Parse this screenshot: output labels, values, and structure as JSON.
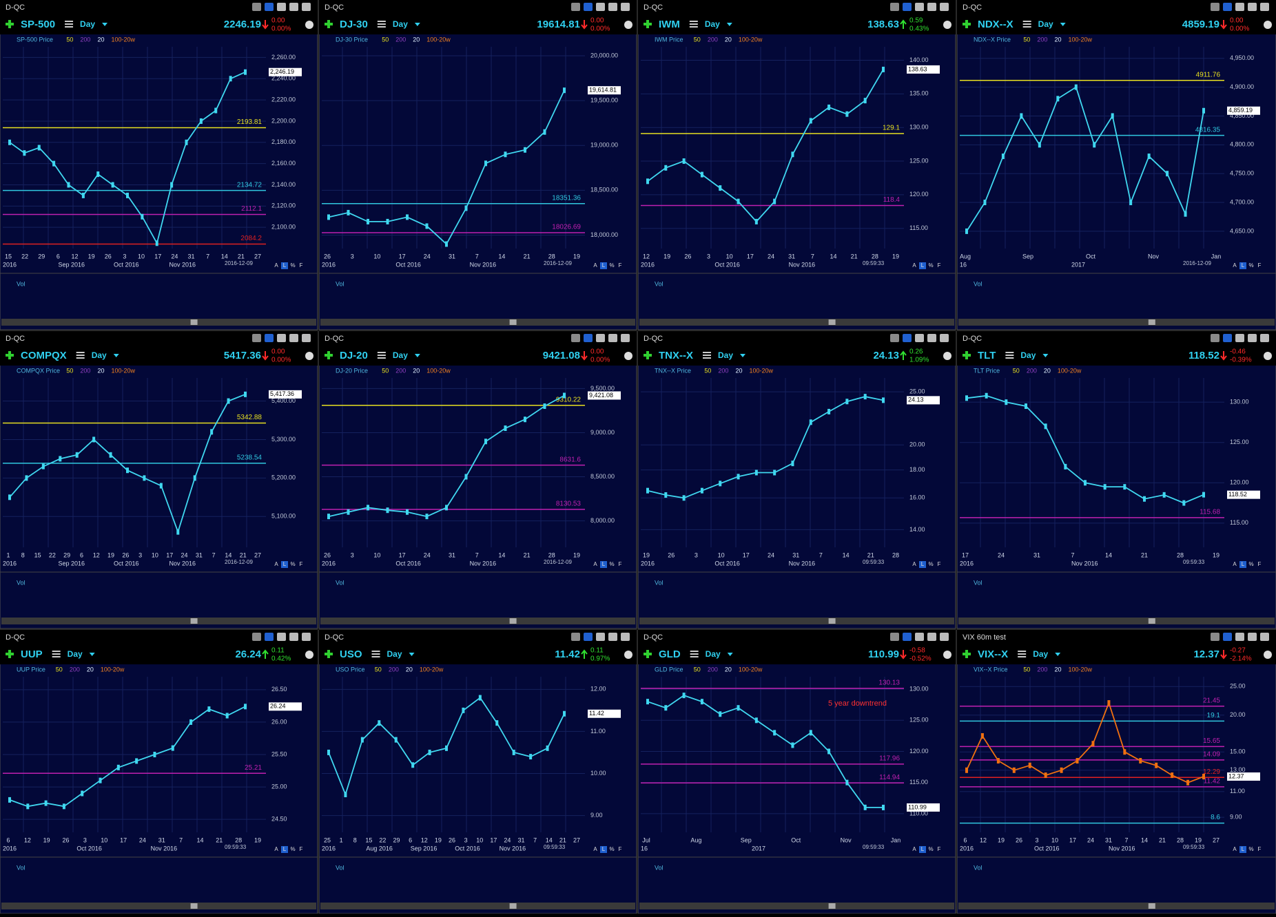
{
  "controls": [
    "A",
    "L",
    "%",
    "F"
  ],
  "volume_label": "Vol",
  "legend_items": [
    "50",
    "200",
    "20",
    "100-20w"
  ],
  "panels": [
    {
      "top": "D-QC",
      "symbol": "SP-500",
      "period": "Day",
      "price": "2246.19",
      "change": "0.00",
      "pct": "0.00%",
      "direction": "down",
      "legend": "SP-500 Price",
      "last_label": "2,246.19",
      "ylim": [
        2080,
        2270
      ],
      "yticks": [
        {
          "value": 2260,
          "label": "2,260.00"
        },
        {
          "value": 2240,
          "label": "2,240.00"
        },
        {
          "value": 2220,
          "label": "2,220.00"
        },
        {
          "value": 2200,
          "label": "2,200.00"
        },
        {
          "value": 2180,
          "label": "2,180.00"
        },
        {
          "value": 2160,
          "label": "2,160.00"
        },
        {
          "value": 2140,
          "label": "2,140.00"
        },
        {
          "value": 2120,
          "label": "2,120.00"
        },
        {
          "value": 2100,
          "label": "2,100.00"
        }
      ],
      "levels": [
        {
          "value": 2193.81,
          "color": "#e8e020"
        },
        {
          "value": 2134.72,
          "color": "#30c8e0"
        },
        {
          "value": 2112.1,
          "color": "#c020b0"
        },
        {
          "value": 2084.2,
          "color": "#e02020"
        }
      ],
      "closes": [
        2180,
        2170,
        2175,
        2160,
        2140,
        2130,
        2150,
        2140,
        2130,
        2110,
        2085,
        2140,
        2180,
        2200,
        2210,
        2240,
        2246.19
      ],
      "x_labels": [
        "15",
        "22",
        "29",
        "6",
        "12",
        "19",
        "26",
        "3",
        "10",
        "17",
        "24",
        "31",
        "7",
        "14",
        "21",
        "27"
      ],
      "x_labels2": [
        "2016",
        "Sep 2016",
        "Oct 2016",
        "Nov 2016"
      ],
      "stamp": "2016-12-09"
    },
    {
      "top": "D-QC",
      "symbol": "DJ-30",
      "period": "Day",
      "price": "19614.81",
      "change": "0.00",
      "pct": "0.00%",
      "direction": "down",
      "legend": "DJ-30 Price",
      "last_label": "19,614.81",
      "ylim": [
        17850,
        20100
      ],
      "yticks": [
        {
          "value": 20000,
          "label": "20,000.00"
        },
        {
          "value": 19500,
          "label": "19,500.00"
        },
        {
          "value": 19000,
          "label": "19,000.00"
        },
        {
          "value": 18500,
          "label": "18,500.00"
        },
        {
          "value": 18000,
          "label": "18,000.00"
        }
      ],
      "levels": [
        {
          "value": 18351.36,
          "color": "#30c8e0"
        },
        {
          "value": 18026.69,
          "color": "#c020b0"
        }
      ],
      "closes": [
        18200,
        18250,
        18150,
        18150,
        18200,
        18100,
        17900,
        18300,
        18800,
        18900,
        18950,
        19150,
        19614.81
      ],
      "x_labels": [
        "26",
        "3",
        "10",
        "17",
        "24",
        "31",
        "7",
        "14",
        "21",
        "28",
        "19"
      ],
      "x_labels2": [
        "2016",
        "Oct 2016",
        "Nov 2016"
      ],
      "stamp": "2016-12-09"
    },
    {
      "top": "D-QC",
      "symbol": "IWM",
      "period": "Day",
      "price": "138.63",
      "change": "0.59",
      "pct": "0.43%",
      "direction": "up",
      "legend": "IWM Price",
      "last_label": "138.63",
      "ylim": [
        112,
        142
      ],
      "yticks": [
        {
          "value": 140,
          "label": "140.00"
        },
        {
          "value": 135,
          "label": "135.00"
        },
        {
          "value": 130,
          "label": "130.00"
        },
        {
          "value": 125,
          "label": "125.00"
        },
        {
          "value": 120,
          "label": "120.00"
        },
        {
          "value": 115,
          "label": "115.00"
        }
      ],
      "levels": [
        {
          "value": 129.1,
          "color": "#e8e020"
        },
        {
          "value": 118.4,
          "color": "#c020b0"
        }
      ],
      "closes": [
        122,
        124,
        125,
        123,
        121,
        119,
        116,
        119,
        126,
        131,
        133,
        132,
        134,
        138.63
      ],
      "x_labels": [
        "12",
        "19",
        "26",
        "3",
        "10",
        "17",
        "24",
        "31",
        "7",
        "14",
        "21",
        "28",
        "19"
      ],
      "x_labels2": [
        "2016",
        "Oct 2016",
        "Nov 2016"
      ],
      "stamp": "09:59:33"
    },
    {
      "top": "D-QC",
      "symbol": "NDX--X",
      "period": "Day",
      "price": "4859.19",
      "change": "0.00",
      "pct": "0.00%",
      "direction": "down",
      "legend": "NDX--X Price",
      "last_label": "4,859.19",
      "ylim": [
        4620,
        4970
      ],
      "yticks": [
        {
          "value": 4950,
          "label": "4,950.00"
        },
        {
          "value": 4900,
          "label": "4,900.00"
        },
        {
          "value": 4850,
          "label": "4,850.00"
        },
        {
          "value": 4800,
          "label": "4,800.00"
        },
        {
          "value": 4750,
          "label": "4,750.00"
        },
        {
          "value": 4700,
          "label": "4,700.00"
        },
        {
          "value": 4650,
          "label": "4,650.00"
        }
      ],
      "levels": [
        {
          "value": 4911.76,
          "color": "#e8e020"
        },
        {
          "value": 4816.35,
          "color": "#30c8e0"
        }
      ],
      "closes": [
        4650,
        4700,
        4780,
        4850,
        4800,
        4880,
        4900,
        4800,
        4850,
        4700,
        4780,
        4750,
        4680,
        4859.19
      ],
      "x_labels": [
        "Aug",
        "Sep",
        "Oct",
        "Nov",
        "Jan"
      ],
      "x_labels2": [
        "16",
        "2017"
      ],
      "stamp": "2016-12-09"
    },
    {
      "top": "D-QC",
      "symbol": "COMPQX",
      "period": "Day",
      "price": "5417.36",
      "change": "0.00",
      "pct": "0.00%",
      "direction": "down",
      "legend": "COMPQX Price",
      "last_label": "5,417.36",
      "ylim": [
        5020,
        5460
      ],
      "yticks": [
        {
          "value": 5400,
          "label": "5,400.00"
        },
        {
          "value": 5300,
          "label": "5,300.00"
        },
        {
          "value": 5200,
          "label": "5,200.00"
        },
        {
          "value": 5100,
          "label": "5,100.00"
        }
      ],
      "levels": [
        {
          "value": 5342.88,
          "color": "#e8e020"
        },
        {
          "value": 5238.54,
          "color": "#30c8e0"
        }
      ],
      "closes": [
        5150,
        5200,
        5230,
        5250,
        5260,
        5300,
        5260,
        5220,
        5200,
        5180,
        5060,
        5200,
        5320,
        5400,
        5417.36
      ],
      "x_labels": [
        "1",
        "8",
        "15",
        "22",
        "29",
        "6",
        "12",
        "19",
        "26",
        "3",
        "10",
        "17",
        "24",
        "31",
        "7",
        "14",
        "21",
        "27"
      ],
      "x_labels2": [
        "2016",
        "Sep 2016",
        "Oct 2016",
        "Nov 2016"
      ],
      "stamp": "2016-12-09"
    },
    {
      "top": "D-QC",
      "symbol": "DJ-20",
      "period": "Day",
      "price": "9421.08",
      "change": "0.00",
      "pct": "0.00%",
      "direction": "down",
      "legend": "DJ-20 Price",
      "last_label": "9,421.08",
      "ylim": [
        7700,
        9620
      ],
      "yticks": [
        {
          "value": 9500,
          "label": "9,500.00"
        },
        {
          "value": 9000,
          "label": "9,000.00"
        },
        {
          "value": 8500,
          "label": "8,500.00"
        },
        {
          "value": 8000,
          "label": "8,000.00"
        }
      ],
      "levels": [
        {
          "value": 9310.22,
          "color": "#e8e020"
        },
        {
          "value": 8631.6,
          "color": "#c020b0"
        },
        {
          "value": 8130.53,
          "color": "#c020b0"
        }
      ],
      "closes": [
        8050,
        8100,
        8150,
        8120,
        8100,
        8050,
        8150,
        8500,
        8900,
        9050,
        9150,
        9300,
        9421.08
      ],
      "x_labels": [
        "26",
        "3",
        "10",
        "17",
        "24",
        "31",
        "7",
        "14",
        "21",
        "28",
        "19"
      ],
      "x_labels2": [
        "2016",
        "Oct 2016",
        "Nov 2016"
      ],
      "stamp": "2016-12-09"
    },
    {
      "top": "D-QC",
      "symbol": "TNX--X",
      "period": "Day",
      "price": "24.13",
      "change": "0.26",
      "pct": "1.09%",
      "direction": "up",
      "legend": "TNX--X Price",
      "last_label": "24.13",
      "log_scale": true,
      "ylim": [
        13,
        26.5
      ],
      "yticks": [
        {
          "value": 25,
          "label": "25.00"
        },
        {
          "value": 20,
          "label": "20.00"
        },
        {
          "value": 18,
          "label": "18.00"
        },
        {
          "value": 16,
          "label": "16.00"
        },
        {
          "value": 14,
          "label": "14.00"
        }
      ],
      "levels": [],
      "closes": [
        16.5,
        16.2,
        16.0,
        16.5,
        17.0,
        17.5,
        17.8,
        17.8,
        18.5,
        22,
        23,
        24,
        24.5,
        24.13
      ],
      "x_labels": [
        "19",
        "26",
        "3",
        "10",
        "17",
        "24",
        "31",
        "7",
        "14",
        "21",
        "28"
      ],
      "x_labels2": [
        "2016",
        "Oct 2016",
        "Nov 2016"
      ],
      "stamp": "09:59:33"
    },
    {
      "top": "D-QC",
      "symbol": "TLT",
      "period": "Day",
      "price": "118.52",
      "change": "-0.46",
      "pct": "-0.39%",
      "direction": "down",
      "legend": "TLT Price",
      "last_label": "118.52",
      "ylim": [
        112,
        133
      ],
      "yticks": [
        {
          "value": 130,
          "label": "130.00"
        },
        {
          "value": 125,
          "label": "125.00"
        },
        {
          "value": 120,
          "label": "120.00"
        },
        {
          "value": 115,
          "label": "115.00"
        }
      ],
      "levels": [
        {
          "value": 115.68,
          "color": "#c020b0"
        }
      ],
      "closes": [
        130.5,
        130.8,
        130,
        129.5,
        127,
        122,
        120,
        119.5,
        119.5,
        118,
        118.5,
        117.5,
        118.52
      ],
      "x_labels": [
        "17",
        "24",
        "31",
        "7",
        "14",
        "21",
        "28",
        "19"
      ],
      "x_labels2": [
        "2016",
        "Nov 2016"
      ],
      "stamp": "09:59:33"
    },
    {
      "top": "D-QC",
      "symbol": "UUP",
      "period": "Day",
      "price": "26.24",
      "change": "0.11",
      "pct": "0.42%",
      "direction": "up",
      "legend": "UUP Price",
      "last_label": "26.24",
      "ylim": [
        24.3,
        26.7
      ],
      "yticks": [
        {
          "value": 26.5,
          "label": "26.50"
        },
        {
          "value": 26,
          "label": "26.00"
        },
        {
          "value": 25.5,
          "label": "25.50"
        },
        {
          "value": 25,
          "label": "25.00"
        },
        {
          "value": 24.5,
          "label": "24.50"
        }
      ],
      "levels": [
        {
          "value": 25.21,
          "color": "#c020b0"
        }
      ],
      "closes": [
        24.8,
        24.7,
        24.75,
        24.7,
        24.9,
        25.1,
        25.3,
        25.4,
        25.5,
        25.6,
        26.0,
        26.2,
        26.1,
        26.24
      ],
      "x_labels": [
        "6",
        "12",
        "19",
        "26",
        "3",
        "10",
        "17",
        "24",
        "31",
        "7",
        "14",
        "21",
        "28",
        "19"
      ],
      "x_labels2": [
        "2016",
        "Oct 2016",
        "Nov 2016"
      ],
      "stamp": "09:59:33"
    },
    {
      "top": "D-QC",
      "symbol": "USO",
      "period": "Day",
      "price": "11.42",
      "change": "0.11",
      "pct": "0.97%",
      "direction": "up",
      "legend": "USO Price",
      "last_label": "11.42",
      "ylim": [
        8.6,
        12.3
      ],
      "yticks": [
        {
          "value": 12,
          "label": "12.00"
        },
        {
          "value": 11,
          "label": "11.00"
        },
        {
          "value": 10,
          "label": "10.00"
        },
        {
          "value": 9,
          "label": "9.00"
        }
      ],
      "levels": [],
      "closes": [
        10.5,
        9.5,
        10.8,
        11.2,
        10.8,
        10.2,
        10.5,
        10.6,
        11.5,
        11.8,
        11.2,
        10.5,
        10.4,
        10.6,
        11.42
      ],
      "x_labels": [
        "25",
        "1",
        "8",
        "15",
        "22",
        "29",
        "6",
        "12",
        "19",
        "26",
        "3",
        "10",
        "17",
        "24",
        "31",
        "7",
        "14",
        "21",
        "27"
      ],
      "x_labels2": [
        "2016",
        "Aug 2016",
        "Sep 2016",
        "Oct 2016",
        "Nov 2016"
      ],
      "stamp": "09:59:33"
    },
    {
      "top": "D-QC",
      "symbol": "GLD",
      "period": "Day",
      "price": "110.99",
      "change": "-0.58",
      "pct": "-0.52%",
      "direction": "down",
      "legend": "GLD Price",
      "last_label": "110.99",
      "annotation": "5 year downtrend",
      "ylim": [
        107,
        132
      ],
      "yticks": [
        {
          "value": 130,
          "label": "130.00"
        },
        {
          "value": 125,
          "label": "125.00"
        },
        {
          "value": 120,
          "label": "120.00"
        },
        {
          "value": 115,
          "label": "115.00"
        },
        {
          "value": 110,
          "label": "110.00"
        }
      ],
      "levels": [
        {
          "value": 130.13,
          "color": "#c020b0"
        },
        {
          "value": 117.96,
          "color": "#c020b0"
        },
        {
          "value": 114.94,
          "color": "#c020b0"
        }
      ],
      "closes": [
        128,
        127,
        129,
        128,
        126,
        127,
        125,
        123,
        121,
        123,
        120,
        115,
        111,
        110.99
      ],
      "x_labels": [
        "Jul",
        "Aug",
        "Sep",
        "Oct",
        "Nov",
        "Jan"
      ],
      "x_labels2": [
        "16",
        "2017"
      ],
      "stamp": "09:59:33"
    },
    {
      "top": "VIX 60m test",
      "symbol": "VIX--X",
      "period": "Day",
      "price": "12.37",
      "change": "-0.27",
      "pct": "-2.14%",
      "direction": "down",
      "legend": "VIX--X Price",
      "last_label": "12.37",
      "log_scale": true,
      "line_color": "#f07010",
      "ylim": [
        8,
        27
      ],
      "yticks": [
        {
          "value": 25,
          "label": "25.00"
        },
        {
          "value": 20,
          "label": "20.00"
        },
        {
          "value": 15,
          "label": "15.00"
        },
        {
          "value": 13,
          "label": "13.00"
        },
        {
          "value": 11,
          "label": "11.00"
        },
        {
          "value": 9,
          "label": "9.00"
        }
      ],
      "levels": [
        {
          "value": 21.45,
          "color": "#c020b0"
        },
        {
          "value": 19.1,
          "color": "#30c8e0"
        },
        {
          "value": 15.65,
          "color": "#c020b0"
        },
        {
          "value": 14.09,
          "color": "#c020b0"
        },
        {
          "value": 12.29,
          "color": "#e02020"
        },
        {
          "value": 11.42,
          "color": "#c020b0"
        },
        {
          "value": 8.6,
          "color": "#30c8e0"
        }
      ],
      "closes": [
        13,
        17,
        14,
        13,
        13.5,
        12.5,
        13,
        14,
        16,
        22,
        15,
        14,
        13.5,
        12.5,
        11.8,
        12.37
      ],
      "x_labels": [
        "6",
        "12",
        "19",
        "26",
        "3",
        "10",
        "17",
        "24",
        "31",
        "7",
        "14",
        "21",
        "28",
        "19",
        "27"
      ],
      "x_labels2": [
        "2016",
        "Oct 2016",
        "Nov 2016"
      ],
      "stamp": "09:59:33"
    }
  ]
}
